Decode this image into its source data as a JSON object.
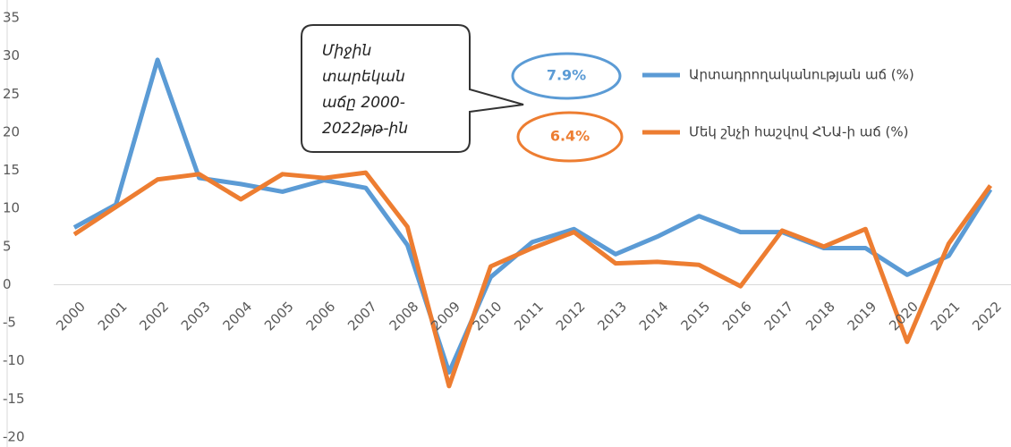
{
  "chart_data": {
    "type": "line",
    "categories": [
      "2000",
      "2001",
      "2002",
      "2003",
      "2004",
      "2005",
      "2006",
      "2007",
      "2008",
      "2009",
      "2010",
      "2011",
      "2012",
      "2013",
      "2014",
      "2015",
      "2016",
      "2017",
      "2018",
      "2019",
      "2020",
      "2021",
      "2022"
    ],
    "series": [
      {
        "name": "Արտադրողականության աճ (%)",
        "color": "#5b9bd5",
        "values": [
          7.5,
          10.5,
          29.5,
          14,
          13.2,
          12.2,
          13.7,
          12.7,
          5.2,
          -11.5,
          1,
          5.6,
          7.3,
          4,
          6.3,
          9,
          6.9,
          6.9,
          4.8,
          4.8,
          1.3,
          3.8,
          12.5
        ],
        "average_label": "7.9%"
      },
      {
        "name": "Մեկ շնչի հաշվով ՀՆԱ-ի աճ (%)",
        "color": "#ed7d31",
        "values": [
          6.6,
          10.2,
          13.8,
          14.5,
          11.2,
          14.5,
          14,
          14.7,
          7.6,
          -13.3,
          2.4,
          4.8,
          6.9,
          2.8,
          3,
          2.6,
          -0.2,
          7.1,
          5,
          7.3,
          -7.5,
          5.4,
          13
        ],
        "average_label": "6.4%"
      }
    ],
    "annotation_lines": [
      "Միջին",
      "տարեկան",
      "աճը 2000-",
      "2022թթ-ին"
    ],
    "ylim": [
      -20,
      35
    ],
    "yticks": [
      -20,
      -15,
      -10,
      -5,
      0,
      5,
      10,
      15,
      20,
      25,
      30,
      35
    ],
    "grid": false
  }
}
